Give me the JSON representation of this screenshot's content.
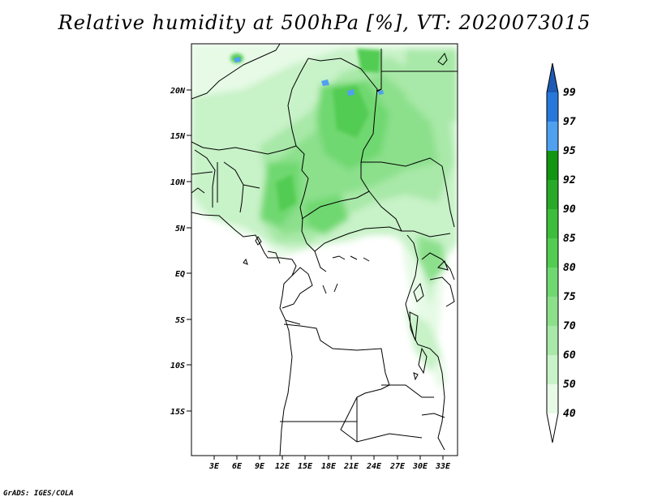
{
  "title": "Relative humidity at 500hPa [%], VT: 2020073015",
  "credit": "GrADS: IGES/COLA",
  "map": {
    "lat_ticks": [
      "20N",
      "15N",
      "10N",
      "5N",
      "EQ",
      "5S",
      "10S",
      "15S"
    ],
    "lon_ticks": [
      "3E",
      "6E",
      "9E",
      "12E",
      "15E",
      "18E",
      "21E",
      "24E",
      "27E",
      "30E",
      "33E"
    ]
  },
  "colorbar": {
    "levels": [
      "40",
      "50",
      "60",
      "70",
      "75",
      "80",
      "85",
      "90",
      "92",
      "95",
      "97",
      "99"
    ],
    "colors": [
      "#ffffff",
      "#e6fae6",
      "#c8f2c8",
      "#a8e8a8",
      "#8ce08c",
      "#70d870",
      "#52cc52",
      "#3cbe3c",
      "#28aa28",
      "#129612",
      "#50a0f0",
      "#2878dc",
      "#1e5ab4"
    ]
  }
}
